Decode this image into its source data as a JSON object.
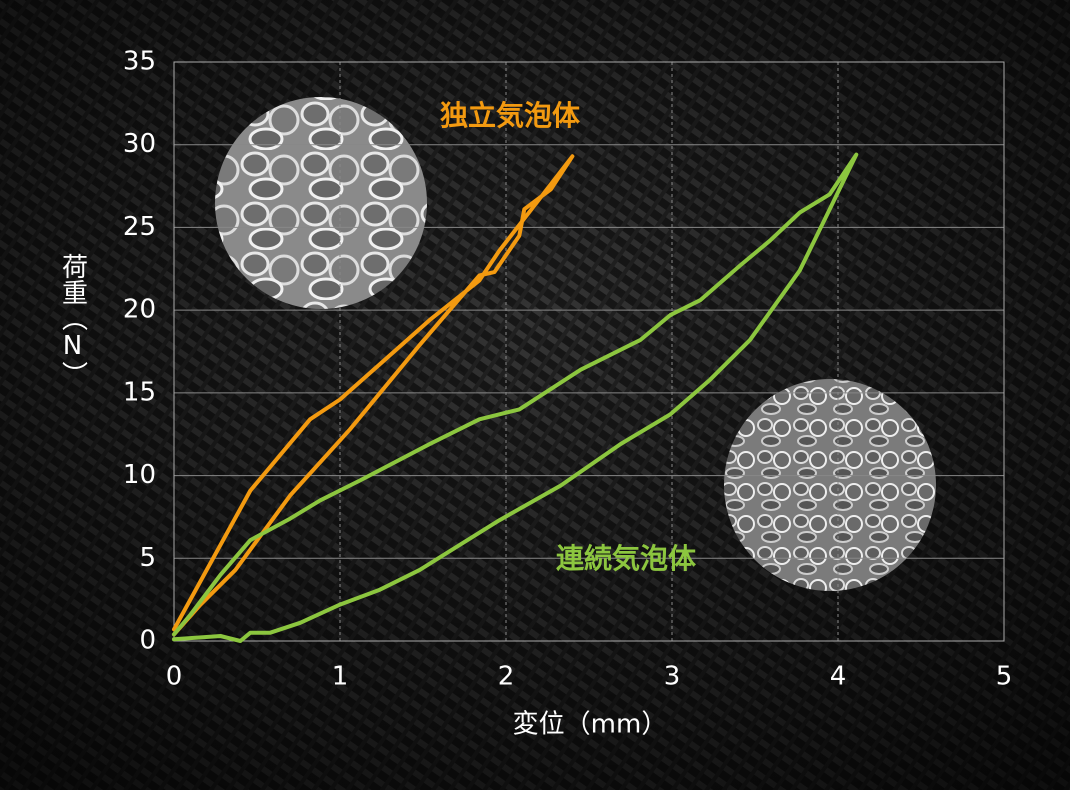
{
  "chart_data": {
    "type": "line",
    "xlabel": "変位（mm）",
    "ylabel": "荷重（N）",
    "xlim": [
      0,
      5
    ],
    "xticks": [
      0,
      1,
      2,
      3,
      4,
      5
    ],
    "ylim": [
      0,
      35
    ],
    "yticks": [
      0,
      5,
      10,
      15,
      20,
      25,
      30,
      35
    ],
    "grid": true,
    "series": [
      {
        "name": "独立気泡体",
        "color": "#f39a10",
        "x": [
          0,
          0.46,
          0.82,
          1.0,
          1.54,
          1.84,
          1.96,
          2.2,
          2.4,
          2.27,
          2.11,
          2.08,
          1.93,
          1.84,
          1.48,
          1.06,
          0.7,
          0.37,
          0.16,
          0
        ],
        "y": [
          0.7,
          9.1,
          13.4,
          14.6,
          19.4,
          21.8,
          23.6,
          26.7,
          29.3,
          27.3,
          26.1,
          24.5,
          22.3,
          22.1,
          17.9,
          12.8,
          8.8,
          4.3,
          2.2,
          0.4
        ]
      },
      {
        "name": "連続気泡体",
        "color": "#8cc63f",
        "x": [
          0,
          0.28,
          0.4,
          0.46,
          0.58,
          0.76,
          1.0,
          1.24,
          1.48,
          1.72,
          1.96,
          2.33,
          2.69,
          2.99,
          3.23,
          3.47,
          3.77,
          3.95,
          4.11,
          3.95,
          3.77,
          3.59,
          3.41,
          3.17,
          2.99,
          2.81,
          2.45,
          2.08,
          1.84,
          1.54,
          1.12,
          0.88,
          0.7,
          0.46,
          0.28,
          0.1,
          0
        ],
        "y": [
          0.1,
          0.3,
          0,
          0.5,
          0.5,
          1.1,
          2.2,
          3.1,
          4.3,
          5.8,
          7.3,
          9.4,
          11.9,
          13.7,
          15.8,
          18.2,
          22.4,
          26.1,
          29.4,
          27.0,
          25.9,
          24.2,
          22.7,
          20.6,
          19.7,
          18.2,
          16.4,
          14.0,
          13.4,
          11.9,
          9.7,
          8.5,
          7.4,
          6.1,
          4.0,
          1.6,
          0.4
        ]
      }
    ]
  }
}
